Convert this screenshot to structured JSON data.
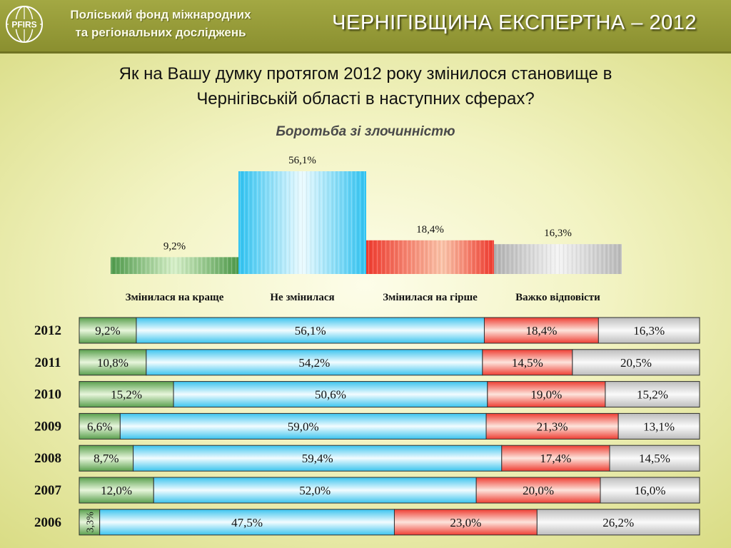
{
  "header": {
    "org_line1": "Поліський фонд міжнародних",
    "org_line2": "та регіональних досліджень",
    "logo_text": "PFIRS",
    "doc_title": "ЧЕРНІГІВЩИНА ЕКСПЕРТНА – 2012"
  },
  "question": {
    "line1": "Як на Вашу думку протягом 2012 року змінилося становище в",
    "line2": "Чернігівській області в наступних сферах?"
  },
  "subtitle": "Боротьба зі злочинністю",
  "colors": {
    "better": "#6fb25a",
    "unchanged": "#4fc8f0",
    "worse": "#f0574a",
    "hard": "#c2c2c2"
  },
  "chart_data": [
    {
      "type": "bar",
      "categories": [
        "Змінилася на краще",
        "Не змінилася",
        "Змінилася на гірше",
        "Важко відповісти"
      ],
      "values": [
        9.2,
        56.1,
        18.4,
        16.3
      ],
      "labels": [
        "9,2%",
        "56,1%",
        "18,4%",
        "16,3%"
      ],
      "ylim": [
        0,
        56.1
      ]
    },
    {
      "type": "bar",
      "stacked": true,
      "horizontal": true,
      "categories": [
        "2012",
        "2011",
        "2010",
        "2009",
        "2008",
        "2007",
        "2006"
      ],
      "series": [
        {
          "values": [
            9.2,
            10.8,
            15.2,
            6.6,
            8.7,
            12.0,
            3.3
          ],
          "labels": [
            "9,2%",
            "10,8%",
            "15,2%",
            "6,6%",
            "8,7%",
            "12,0%",
            "3,3%"
          ]
        },
        {
          "values": [
            56.1,
            54.2,
            50.6,
            59.0,
            59.4,
            52.0,
            47.5
          ],
          "labels": [
            "56,1%",
            "54,2%",
            "50,6%",
            "59,0%",
            "59,4%",
            "52,0%",
            "47,5%"
          ]
        },
        {
          "values": [
            18.4,
            14.5,
            19.0,
            21.3,
            17.4,
            20.0,
            23.0
          ],
          "labels": [
            "18,4%",
            "14,5%",
            "19,0%",
            "21,3%",
            "17,4%",
            "20,0%",
            "23,0%"
          ]
        },
        {
          "values": [
            16.3,
            20.5,
            15.2,
            13.1,
            14.5,
            16.0,
            26.2
          ],
          "labels": [
            "16,3%",
            "20,5%",
            "15,2%",
            "13,1%",
            "14,5%",
            "16,0%",
            "26,2%"
          ]
        }
      ]
    }
  ]
}
